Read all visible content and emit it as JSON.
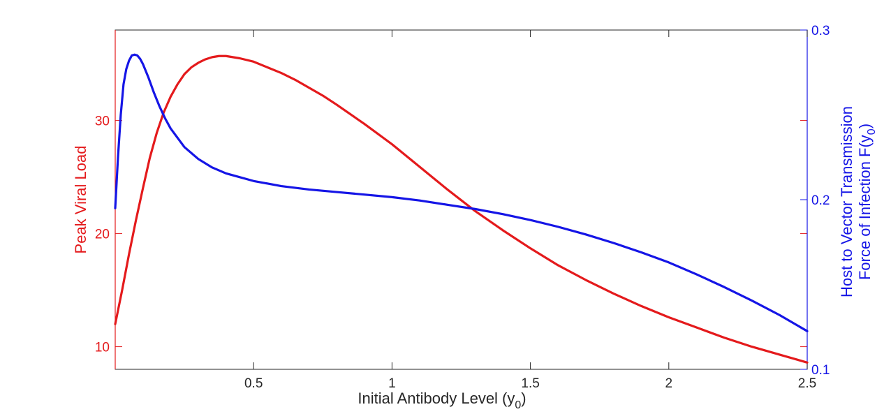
{
  "chart_data": {
    "type": "line",
    "title": "",
    "xlabel": "Initial Antibody Level (y",
    "xlabel_sub": "0",
    "xlabel_close": ")",
    "xlim": [
      0,
      2.5
    ],
    "xticks": [
      0.5,
      1,
      1.5,
      2,
      2.5
    ],
    "xtick_labels": [
      "0.5",
      "1",
      "1.5",
      "2",
      "2.5"
    ],
    "left_axis": {
      "label": "Peak Viral Load",
      "color": "#e41a1c",
      "ylim": [
        8,
        38
      ],
      "yticks": [
        10,
        20,
        30
      ],
      "ytick_labels": [
        "10",
        "20",
        "30"
      ]
    },
    "right_axis": {
      "label_line1": "Host to Vector Transmission",
      "label_line2": "Force of Infection F(y",
      "label_line2_sub": "0",
      "label_line2_close": ")",
      "color": "#1515e6",
      "ylim": [
        0.1,
        0.3
      ],
      "yticks": [
        0.1,
        0.2,
        0.3
      ],
      "ytick_labels": [
        "0.1",
        "0.2",
        "0.3"
      ]
    },
    "series": [
      {
        "axis": "left",
        "color": "#e41a1c",
        "x": [
          0.0,
          0.025,
          0.05,
          0.075,
          0.1,
          0.125,
          0.15,
          0.175,
          0.2,
          0.225,
          0.25,
          0.275,
          0.3,
          0.325,
          0.35,
          0.375,
          0.4,
          0.425,
          0.45,
          0.5,
          0.55,
          0.6,
          0.65,
          0.7,
          0.75,
          0.8,
          0.9,
          1.0,
          1.1,
          1.2,
          1.3,
          1.4,
          1.5,
          1.6,
          1.7,
          1.8,
          1.9,
          2.0,
          2.1,
          2.2,
          2.3,
          2.4,
          2.5
        ],
        "y": [
          12.0,
          15.0,
          18.2,
          21.2,
          24.0,
          26.7,
          28.9,
          30.7,
          32.1,
          33.2,
          34.1,
          34.7,
          35.1,
          35.4,
          35.6,
          35.7,
          35.7,
          35.6,
          35.5,
          35.2,
          34.7,
          34.2,
          33.6,
          32.9,
          32.2,
          31.4,
          29.7,
          27.9,
          25.9,
          23.9,
          22.0,
          20.3,
          18.7,
          17.2,
          15.9,
          14.7,
          13.6,
          12.6,
          11.7,
          10.8,
          10.0,
          9.3,
          8.6
        ]
      },
      {
        "axis": "right",
        "color": "#1515e6",
        "x": [
          0.0,
          0.01,
          0.02,
          0.03,
          0.04,
          0.05,
          0.06,
          0.07,
          0.08,
          0.09,
          0.1,
          0.12,
          0.14,
          0.16,
          0.18,
          0.2,
          0.25,
          0.3,
          0.35,
          0.4,
          0.5,
          0.6,
          0.7,
          0.8,
          0.9,
          1.0,
          1.1,
          1.2,
          1.3,
          1.4,
          1.5,
          1.6,
          1.7,
          1.8,
          1.9,
          2.0,
          2.1,
          2.2,
          2.3,
          2.4,
          2.5
        ],
        "y": [
          0.195,
          0.225,
          0.25,
          0.268,
          0.277,
          0.282,
          0.285,
          0.2855,
          0.285,
          0.283,
          0.28,
          0.272,
          0.263,
          0.255,
          0.248,
          0.242,
          0.231,
          0.224,
          0.219,
          0.2155,
          0.211,
          0.208,
          0.206,
          0.2045,
          0.203,
          0.2015,
          0.1995,
          0.197,
          0.1945,
          0.1915,
          0.188,
          0.184,
          0.1795,
          0.1745,
          0.169,
          0.163,
          0.156,
          0.1485,
          0.1405,
          0.132,
          0.1225
        ]
      }
    ]
  }
}
